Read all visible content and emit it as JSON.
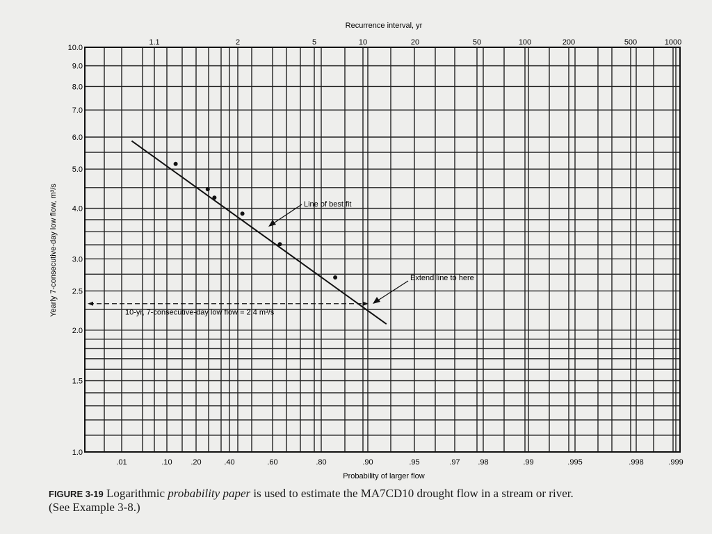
{
  "chart_data": {
    "type": "scatter",
    "title": "",
    "xlabel": "Probability of larger flow",
    "x2label": "Recurrence interval, yr",
    "ylabel": "Yearly 7-consecutive-day low flow, m³/s",
    "yscale": "log",
    "ylim": [
      1.0,
      10.0
    ],
    "grid": true,
    "x_tick_labels": [
      ".01",
      ".10",
      ".20",
      ".40",
      ".60",
      ".80",
      ".90",
      ".95",
      ".97",
      ".98",
      ".99",
      ".995",
      ".998",
      ".999"
    ],
    "x2_tick_labels": [
      "1.1",
      "2",
      "5",
      "10",
      "20",
      "50",
      "100",
      "200",
      "500",
      "1000"
    ],
    "y_tick_labels": [
      "1.0",
      "1.5",
      "2.0",
      "2.5",
      "3.0",
      "4.0",
      "5.0",
      "6.0",
      "7.0",
      "8.0",
      "9.0",
      "10.0"
    ],
    "points": [
      {
        "p": 0.13,
        "q": 5.15
      },
      {
        "p": 0.27,
        "q": 4.46
      },
      {
        "p": 0.31,
        "q": 4.25
      },
      {
        "p": 0.46,
        "q": 3.88
      },
      {
        "p": 0.63,
        "q": 3.26
      },
      {
        "p": 0.83,
        "q": 2.7
      }
    ],
    "best_fit_line": [
      {
        "p": 0.03,
        "q": 5.87
      },
      {
        "p": 0.92,
        "q": 2.07
      }
    ],
    "annotations": {
      "best_fit": "Line of best fit",
      "extend": "Extend line to here",
      "result": "10-yr, 7-consecutive-day low flow = 2.4 m³/s"
    },
    "result_value": 2.4
  },
  "caption": {
    "figure": "FIGURE 3-19",
    "text_a": " Logarithmic ",
    "text_italic": "probability paper",
    "text_b": " is used to estimate the MA7CD10 drought flow in a stream or river.",
    "line2": "(See Example 3-8.)"
  }
}
